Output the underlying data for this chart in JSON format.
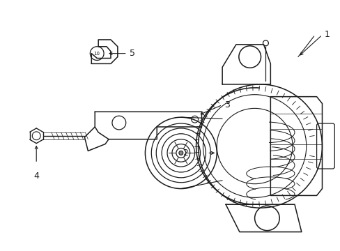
{
  "background_color": "#ffffff",
  "line_color": "#1a1a1a",
  "lw": 1.1,
  "fig_width": 4.89,
  "fig_height": 3.6,
  "dpi": 100
}
